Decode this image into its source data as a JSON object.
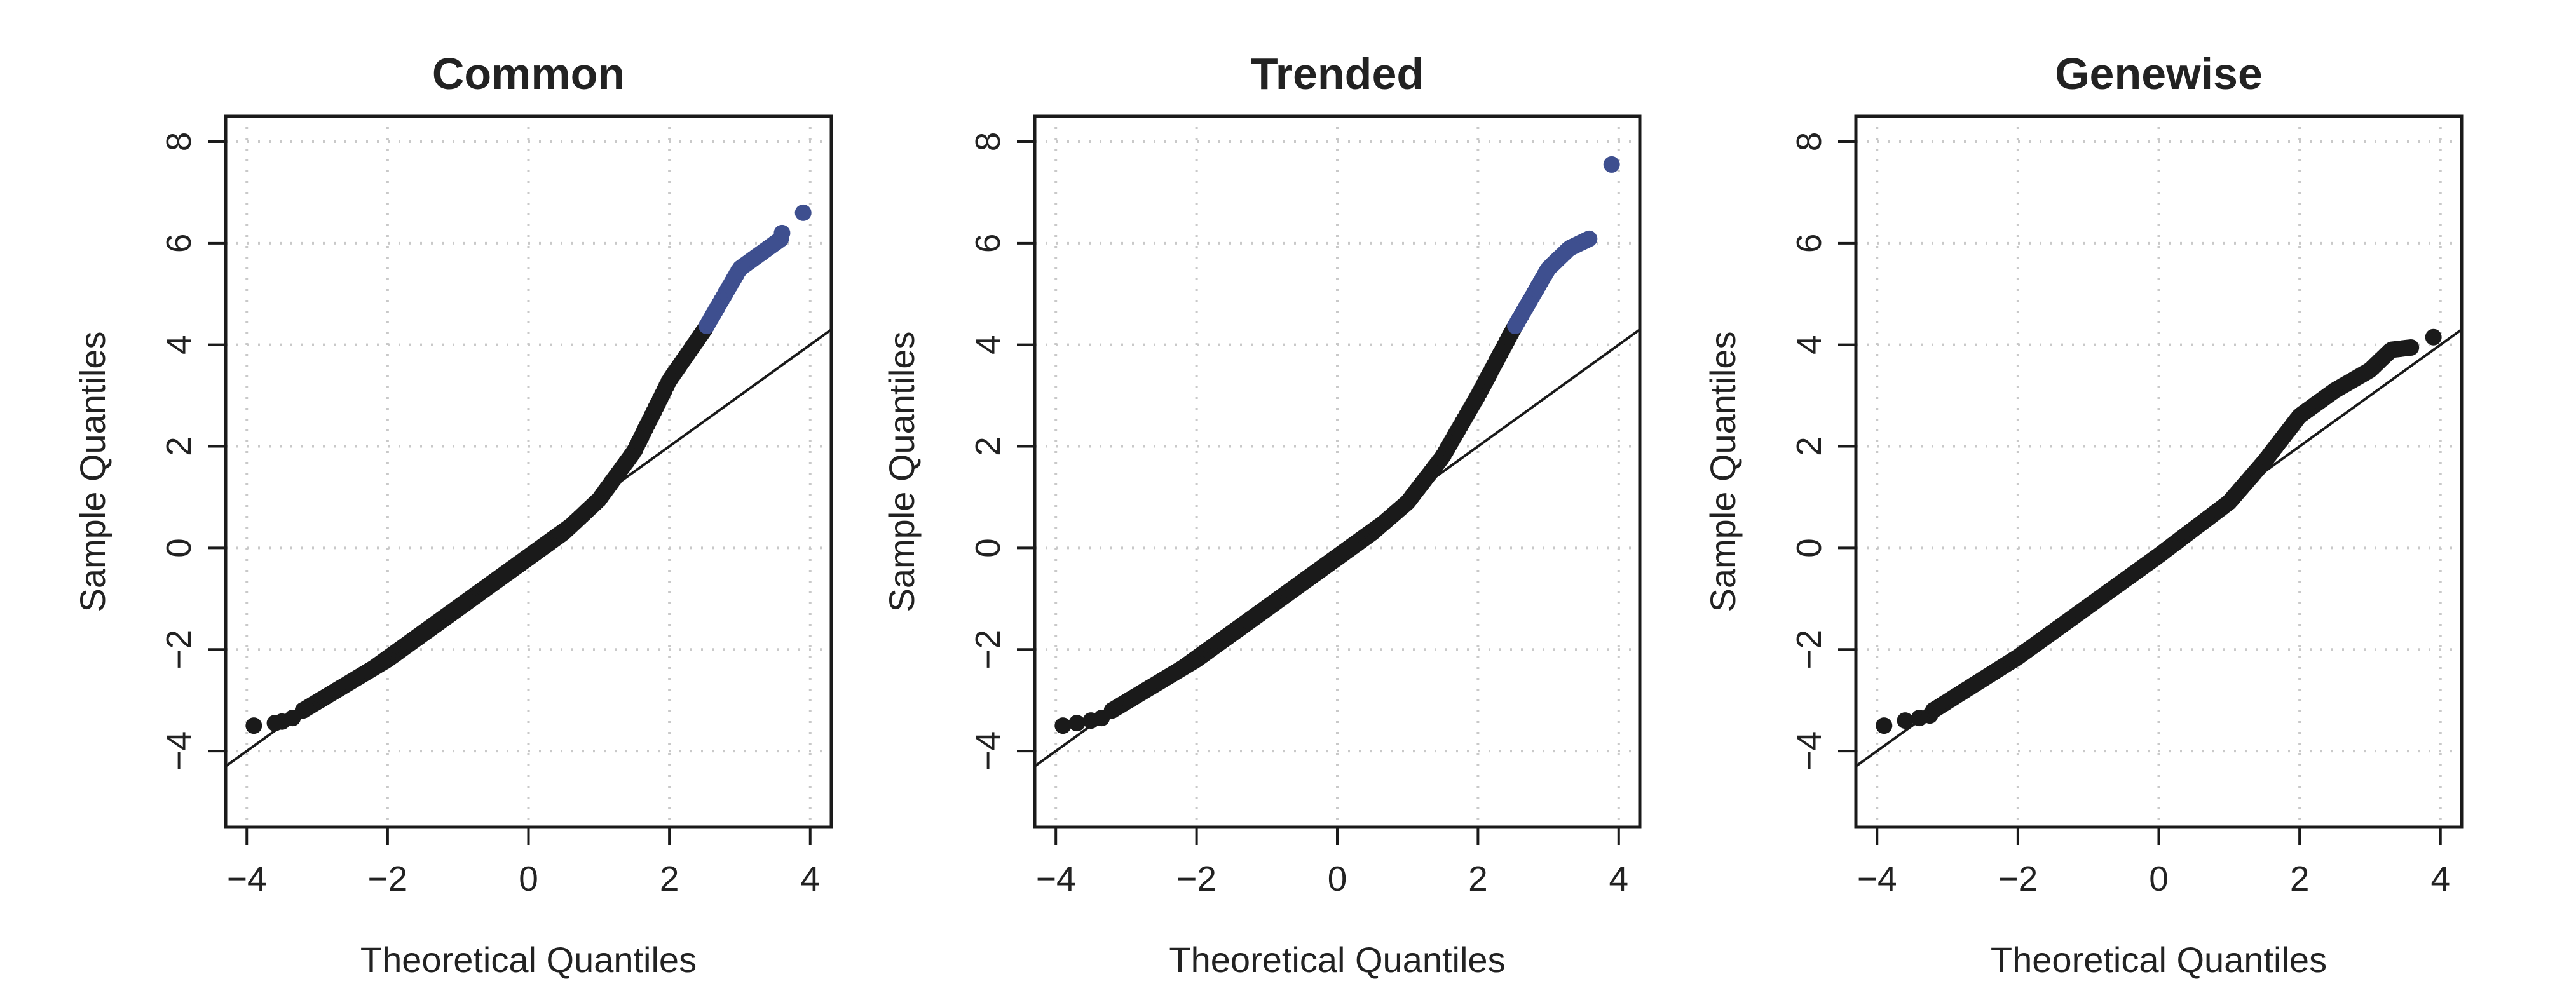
{
  "colors": {
    "normal_point": "#1a1a1a",
    "highlight_point": "#3e4f8f",
    "grid": "#c9c9c9",
    "frame": "#1a1a1a",
    "ref_line": "#1a1a1a"
  },
  "chart_data": [
    {
      "type": "scatter",
      "title": "Common",
      "xlabel": "Theoretical Quantiles",
      "ylabel": "Sample Quantiles",
      "xlim": [
        -4.3,
        4.3
      ],
      "ylim": [
        -5.5,
        8.5
      ],
      "xticks": [
        -4,
        -2,
        0,
        2,
        4
      ],
      "yticks": [
        -4,
        -2,
        0,
        2,
        4,
        6,
        8
      ],
      "xtick_labels": [
        "−4",
        "−2",
        "0",
        "2",
        "4"
      ],
      "ytick_labels": [
        "−4",
        "−2",
        "0",
        "2",
        "4",
        "6",
        "8"
      ],
      "grid": true,
      "reference_line": {
        "intercept": 0,
        "slope": 1
      },
      "curve": [
        [
          -3.2,
          -3.2
        ],
        [
          -2,
          -2.2
        ],
        [
          -1,
          -1.2
        ],
        [
          0,
          -0.2
        ],
        [
          0.5,
          0.3
        ],
        [
          1,
          0.95
        ],
        [
          1.5,
          1.9
        ],
        [
          2,
          3.3
        ],
        [
          2.5,
          4.3
        ],
        [
          3,
          5.5
        ],
        [
          3.3,
          5.8
        ],
        [
          3.6,
          6.1
        ]
      ],
      "highlight_start_x": 2.5,
      "lead_points": [
        [
          -3.9,
          -3.5
        ],
        [
          -3.6,
          -3.45
        ],
        [
          -3.5,
          -3.42
        ],
        [
          -3.35,
          -3.35
        ],
        [
          -3.2,
          -3.2
        ]
      ],
      "tail_points": [
        [
          3.6,
          6.2
        ],
        [
          3.9,
          6.6
        ]
      ]
    },
    {
      "type": "scatter",
      "title": "Trended",
      "xlabel": "Theoretical Quantiles",
      "ylabel": "Sample Quantiles",
      "xlim": [
        -4.3,
        4.3
      ],
      "ylim": [
        -5.5,
        8.5
      ],
      "xticks": [
        -4,
        -2,
        0,
        2,
        4
      ],
      "yticks": [
        -4,
        -2,
        0,
        2,
        4,
        6,
        8
      ],
      "xtick_labels": [
        "−4",
        "−2",
        "0",
        "2",
        "4"
      ],
      "ytick_labels": [
        "−4",
        "−2",
        "0",
        "2",
        "4",
        "6",
        "8"
      ],
      "grid": true,
      "reference_line": {
        "intercept": 0,
        "slope": 1
      },
      "curve": [
        [
          -3.2,
          -3.2
        ],
        [
          -2,
          -2.2
        ],
        [
          -1,
          -1.2
        ],
        [
          0,
          -0.2
        ],
        [
          0.5,
          0.3
        ],
        [
          1,
          0.9
        ],
        [
          1.5,
          1.8
        ],
        [
          2,
          3.0
        ],
        [
          2.5,
          4.3
        ],
        [
          3,
          5.5
        ],
        [
          3.3,
          5.9
        ],
        [
          3.6,
          6.1
        ]
      ],
      "highlight_start_x": 2.5,
      "lead_points": [
        [
          -3.9,
          -3.5
        ],
        [
          -3.7,
          -3.45
        ],
        [
          -3.5,
          -3.4
        ],
        [
          -3.35,
          -3.35
        ],
        [
          -3.2,
          -3.2
        ]
      ],
      "tail_points": [
        [
          3.9,
          7.55
        ]
      ]
    },
    {
      "type": "scatter",
      "title": "Genewise",
      "xlabel": "Theoretical Quantiles",
      "ylabel": "Sample Quantiles",
      "xlim": [
        -4.3,
        4.3
      ],
      "ylim": [
        -5.5,
        8.5
      ],
      "xticks": [
        -4,
        -2,
        0,
        2,
        4
      ],
      "yticks": [
        -4,
        -2,
        0,
        2,
        4,
        6,
        8
      ],
      "xtick_labels": [
        "−4",
        "−2",
        "0",
        "2",
        "4"
      ],
      "ytick_labels": [
        "−4",
        "−2",
        "0",
        "2",
        "4",
        "6",
        "8"
      ],
      "grid": true,
      "reference_line": {
        "intercept": 0,
        "slope": 1
      },
      "curve": [
        [
          -3.2,
          -3.2
        ],
        [
          -2,
          -2.15
        ],
        [
          -1,
          -1.15
        ],
        [
          0,
          -0.15
        ],
        [
          1,
          0.9
        ],
        [
          1.5,
          1.7
        ],
        [
          2,
          2.6
        ],
        [
          2.5,
          3.1
        ],
        [
          3,
          3.5
        ],
        [
          3.3,
          3.9
        ],
        [
          3.6,
          3.95
        ]
      ],
      "highlight_start_x": null,
      "lead_points": [
        [
          -3.9,
          -3.5
        ],
        [
          -3.6,
          -3.4
        ],
        [
          -3.4,
          -3.35
        ],
        [
          -3.25,
          -3.3
        ],
        [
          -3.2,
          -3.2
        ]
      ],
      "tail_points": [
        [
          3.9,
          4.15
        ]
      ]
    }
  ]
}
